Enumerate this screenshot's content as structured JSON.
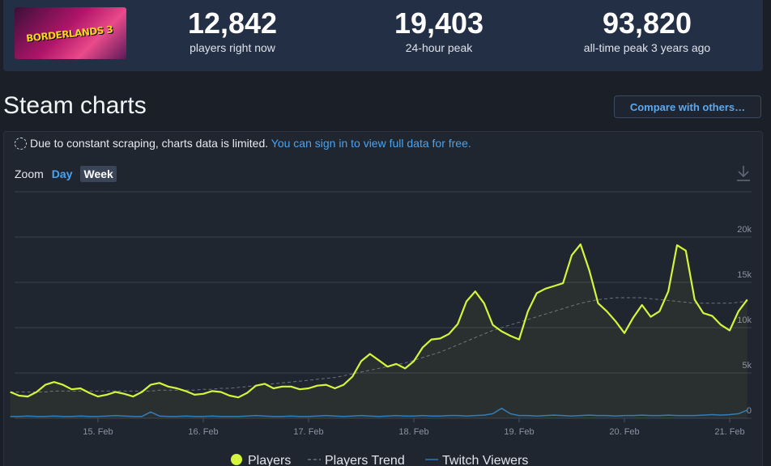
{
  "header": {
    "game_logo": "BORDERLANDS 3",
    "stats": [
      {
        "value": "12,842",
        "label": "players right now"
      },
      {
        "value": "19,403",
        "label": "24-hour peak"
      },
      {
        "value": "93,820",
        "label": "all-time peak 3 years ago"
      }
    ]
  },
  "section": {
    "title": "Steam charts",
    "compare_button": "Compare with others…",
    "notice": "Due to constant scraping, charts data is limited.",
    "notice_link": "You can sign in to view full data for free.",
    "zoom_label": "Zoom",
    "zoom_options": [
      "Day",
      "Week"
    ]
  },
  "chart_data": {
    "type": "line",
    "categories": [
      null,
      null,
      null,
      null,
      null,
      null,
      null,
      null,
      null,
      null,
      "15. Feb",
      null,
      null,
      null,
      null,
      null,
      null,
      null,
      null,
      null,
      null,
      null,
      "16. Feb",
      null,
      null,
      null,
      null,
      null,
      null,
      null,
      null,
      null,
      null,
      null,
      "17. Feb",
      null,
      null,
      null,
      null,
      null,
      null,
      null,
      null,
      null,
      null,
      null,
      "18. Feb",
      null,
      null,
      null,
      null,
      null,
      null,
      null,
      null,
      null,
      null,
      null,
      "19. Feb",
      null,
      null,
      null,
      null,
      null,
      null,
      null,
      null,
      null,
      null,
      null,
      "20. Feb",
      null,
      null,
      null,
      null,
      null,
      null,
      null,
      null,
      null,
      null,
      null,
      "21. Feb",
      null,
      null
    ],
    "series": [
      {
        "name": "Players",
        "color": "#d4f53c",
        "style": "solid",
        "values": [
          2900,
          2500,
          2400,
          2900,
          3700,
          4000,
          3700,
          3200,
          3300,
          2800,
          2400,
          2600,
          2900,
          2700,
          2400,
          2900,
          3700,
          3900,
          3500,
          3300,
          3000,
          2600,
          2700,
          3000,
          2900,
          2500,
          2300,
          2800,
          3600,
          3800,
          3300,
          3500,
          3500,
          3200,
          3300,
          3600,
          3700,
          3300,
          3700,
          4600,
          6300,
          7100,
          6400,
          5700,
          6000,
          5500,
          6300,
          7800,
          8700,
          8800,
          9300,
          10400,
          12900,
          14000,
          12700,
          10300,
          9600,
          9100,
          8700,
          11800,
          13800,
          14300,
          14600,
          14900,
          18000,
          19200,
          16300,
          12700,
          11800,
          10700,
          9400,
          11100,
          12500,
          11200,
          11800,
          14000,
          19100,
          18500,
          13100,
          11600,
          11300,
          10300,
          9700,
          11800,
          13100
        ]
      },
      {
        "name": "Players Trend",
        "color": "#6b7280",
        "style": "dashed",
        "values": [
          2900,
          2900,
          2900,
          2900,
          2900,
          3000,
          3000,
          3000,
          3000,
          3000,
          3000,
          3000,
          3000,
          3000,
          3000,
          3000,
          3000,
          3100,
          3100,
          3100,
          3100,
          3100,
          3200,
          3200,
          3300,
          3300,
          3400,
          3500,
          3600,
          3700,
          3800,
          3900,
          4000,
          4100,
          4200,
          4300,
          4400,
          4500,
          4700,
          4900,
          5100,
          5300,
          5500,
          5700,
          5900,
          6100,
          6400,
          6700,
          7000,
          7300,
          7700,
          8100,
          8500,
          8900,
          9300,
          9700,
          10000,
          10300,
          10600,
          10900,
          11200,
          11500,
          11800,
          12100,
          12400,
          12700,
          12900,
          13100,
          13200,
          13300,
          13300,
          13300,
          13300,
          13200,
          13100,
          13000,
          12900,
          12800,
          12700,
          12700,
          12700,
          12700,
          12700,
          12800,
          12900
        ]
      },
      {
        "name": "Twitch Viewers",
        "color": "#2a78c2",
        "style": "solid",
        "values": [
          200,
          200,
          250,
          200,
          200,
          250,
          200,
          200,
          250,
          200,
          200,
          250,
          300,
          250,
          200,
          200,
          700,
          250,
          200,
          200,
          250,
          200,
          200,
          250,
          200,
          200,
          200,
          250,
          300,
          250,
          200,
          200,
          250,
          200,
          200,
          250,
          300,
          250,
          200,
          250,
          300,
          250,
          200,
          250,
          300,
          250,
          250,
          300,
          250,
          250,
          300,
          300,
          250,
          300,
          350,
          500,
          1100,
          500,
          300,
          300,
          250,
          300,
          350,
          300,
          250,
          300,
          350,
          300,
          300,
          250,
          300,
          300,
          350,
          300,
          300,
          350,
          300,
          300,
          300,
          350,
          400,
          350,
          400,
          500,
          900
        ]
      }
    ],
    "ylim": [
      0,
      25000
    ],
    "yticks": [
      0,
      {
        "value": 5000,
        "label": "5k"
      },
      {
        "value": 10000,
        "label": "10k"
      },
      {
        "value": 15000,
        "label": "15k"
      },
      {
        "value": 20000,
        "label": "20k"
      }
    ],
    "grid": true
  }
}
